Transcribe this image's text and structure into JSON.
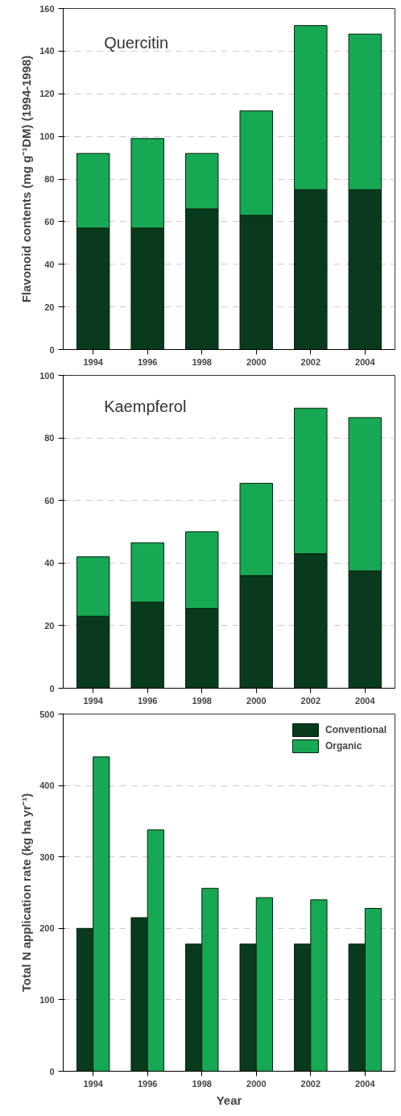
{
  "chart_data": [
    {
      "type": "bar",
      "title": "Quercitin",
      "ylabel": "Flavonoid contents (mg g⁻¹DM) (1994-1998)",
      "stacked": true,
      "categories": [
        "1994",
        "1996",
        "1998",
        "2000",
        "2002",
        "2004"
      ],
      "series": [
        {
          "color": "#083a1d",
          "values": [
            57,
            57,
            66,
            63,
            75,
            75
          ]
        },
        {
          "color": "#17a853",
          "values": [
            35,
            42,
            26,
            49,
            77,
            73
          ]
        }
      ],
      "ylim": [
        0,
        160
      ],
      "yticks": [
        0,
        20,
        40,
        60,
        80,
        100,
        120,
        140,
        160
      ],
      "grid": "y"
    },
    {
      "type": "bar",
      "title": "Kaempferol",
      "stacked": true,
      "categories": [
        "1994",
        "1996",
        "1998",
        "2000",
        "2002",
        "2004"
      ],
      "series": [
        {
          "color": "#083a1d",
          "values": [
            23,
            27.5,
            25.5,
            36,
            43,
            37.5
          ]
        },
        {
          "color": "#17a853",
          "values": [
            19,
            19,
            24.5,
            29.5,
            46.5,
            49
          ]
        }
      ],
      "ylim": [
        0,
        100
      ],
      "yticks": [
        0,
        20,
        40,
        60,
        80,
        100
      ],
      "grid": "y"
    },
    {
      "type": "bar",
      "xlabel": "Year",
      "ylabel": "Total N application rate (kg ha yr⁻¹)",
      "categories": [
        "1994",
        "1996",
        "1998",
        "2000",
        "2002",
        "2004"
      ],
      "series": [
        {
          "name": "Conventional",
          "color": "#083a1d",
          "values": [
            200,
            215,
            178,
            178,
            178,
            178
          ]
        },
        {
          "name": "Organic",
          "color": "#17a853",
          "values": [
            440,
            338,
            256,
            243,
            240,
            228
          ]
        }
      ],
      "ylim": [
        0,
        500
      ],
      "yticks": [
        0,
        100,
        200,
        300,
        400,
        500
      ],
      "grid": "y",
      "legend": "top right"
    }
  ]
}
